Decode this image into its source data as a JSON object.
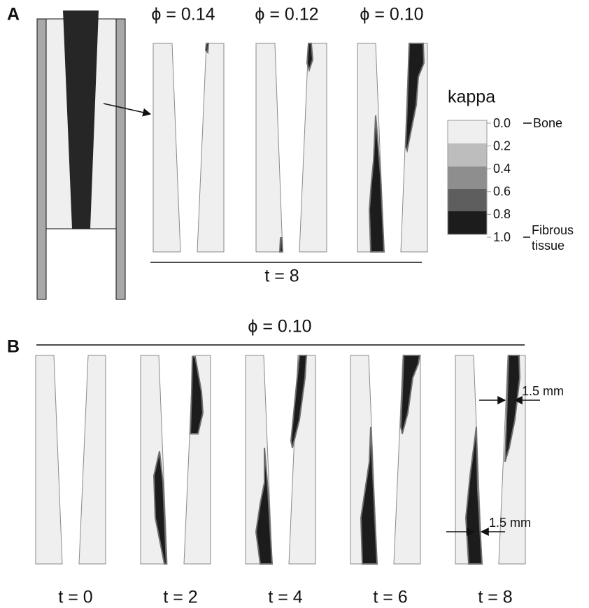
{
  "panel_a": {
    "label": "A",
    "phi_labels": [
      "ϕ = 0.14",
      "ϕ = 0.12",
      "ϕ = 0.10"
    ],
    "time_label": "t = 8",
    "legend": {
      "title": "kappa",
      "ticks": [
        "0.0",
        "0.2",
        "0.4",
        "0.6",
        "0.8",
        "1.0"
      ],
      "bone": "Bone",
      "fibrous": [
        "Fibrous",
        "tissue"
      ]
    }
  },
  "panel_b": {
    "label": "B",
    "phi_label": "ϕ = 0.10",
    "time_labels": [
      "t = 0",
      "t = 2",
      "t = 4",
      "t = 6",
      "t = 8"
    ],
    "width_labels": [
      "1.5 mm",
      "1.5 mm"
    ]
  }
}
